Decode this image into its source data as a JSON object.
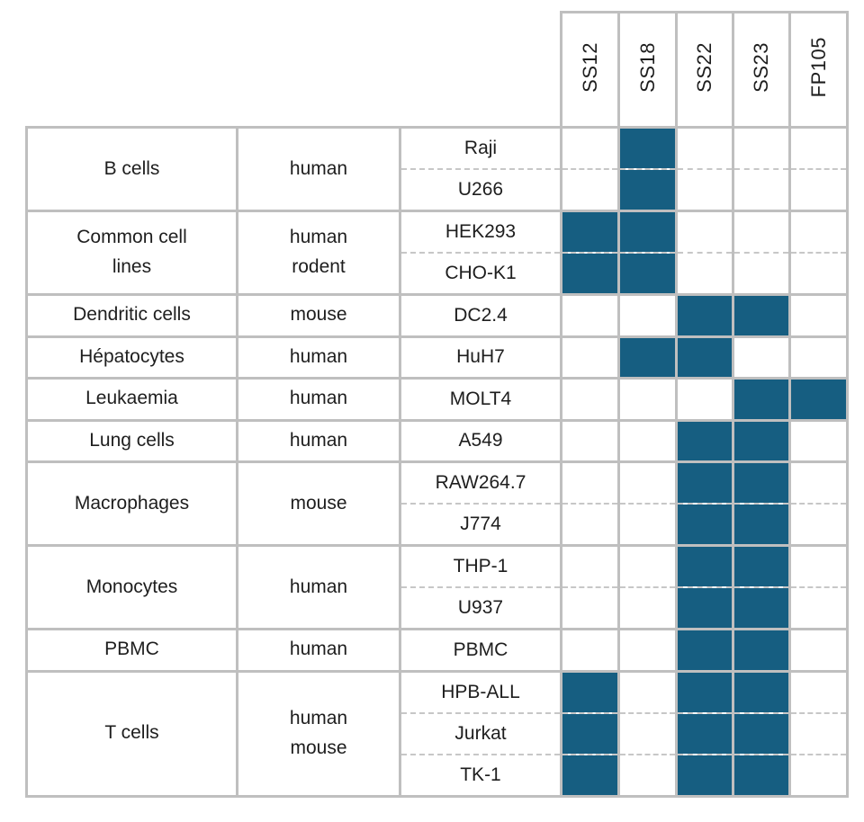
{
  "colors": {
    "fill": "#165E81",
    "border": "#BFBFBF",
    "dash": "#C7C7C7",
    "text": "#1E1E1E"
  },
  "compounds": [
    "SS12",
    "SS18",
    "SS22",
    "SS23",
    "FP105"
  ],
  "groups": [
    {
      "cell_type": "B cells",
      "species": "human",
      "rows": [
        {
          "cell_line": "Raji",
          "marks": [
            "SS18"
          ]
        },
        {
          "cell_line": "U266",
          "marks": [
            "SS18"
          ]
        }
      ]
    },
    {
      "cell_type": "Common cell\nlines",
      "species": "human\nrodent",
      "rows": [
        {
          "cell_line": "HEK293",
          "marks": [
            "SS12",
            "SS18"
          ]
        },
        {
          "cell_line": "CHO-K1",
          "marks": [
            "SS12",
            "SS18"
          ]
        }
      ]
    },
    {
      "cell_type": "Dendritic cells",
      "species": "mouse",
      "rows": [
        {
          "cell_line": "DC2.4",
          "marks": [
            "SS22",
            "SS23"
          ]
        }
      ]
    },
    {
      "cell_type": "Hépatocytes",
      "species": "human",
      "rows": [
        {
          "cell_line": "HuH7",
          "marks": [
            "SS18",
            "SS22"
          ]
        }
      ]
    },
    {
      "cell_type": "Leukaemia",
      "species": "human",
      "rows": [
        {
          "cell_line": "MOLT4",
          "marks": [
            "SS23",
            "FP105"
          ]
        }
      ]
    },
    {
      "cell_type": "Lung cells",
      "species": "human",
      "rows": [
        {
          "cell_line": "A549",
          "marks": [
            "SS22",
            "SS23"
          ]
        }
      ]
    },
    {
      "cell_type": "Macrophages",
      "species": "mouse",
      "rows": [
        {
          "cell_line": "RAW264.7",
          "marks": [
            "SS22",
            "SS23"
          ]
        },
        {
          "cell_line": "J774",
          "marks": [
            "SS22",
            "SS23"
          ]
        }
      ]
    },
    {
      "cell_type": "Monocytes",
      "species": "human",
      "rows": [
        {
          "cell_line": "THP-1",
          "marks": [
            "SS22",
            "SS23"
          ]
        },
        {
          "cell_line": "U937",
          "marks": [
            "SS22",
            "SS23"
          ]
        }
      ]
    },
    {
      "cell_type": "PBMC",
      "species": "human",
      "rows": [
        {
          "cell_line": "PBMC",
          "marks": [
            "SS22",
            "SS23"
          ]
        }
      ]
    },
    {
      "cell_type": "T cells",
      "species": "human\nmouse",
      "rows": [
        {
          "cell_line": "HPB-ALL",
          "marks": [
            "SS12",
            "SS22",
            "SS23"
          ]
        },
        {
          "cell_line": "Jurkat",
          "marks": [
            "SS12",
            "SS22",
            "SS23"
          ]
        },
        {
          "cell_line": "TK-1",
          "marks": [
            "SS12",
            "SS22",
            "SS23"
          ]
        }
      ]
    }
  ],
  "chart_data": {
    "type": "heatmap",
    "title": "",
    "x_labels": [
      "SS12",
      "SS18",
      "SS22",
      "SS23",
      "FP105"
    ],
    "y_labels": [
      "Raji",
      "U266",
      "HEK293",
      "CHO-K1",
      "DC2.4",
      "HuH7",
      "MOLT4",
      "A549",
      "RAW264.7",
      "J774",
      "THP-1",
      "U937",
      "PBMC",
      "HPB-ALL",
      "Jurkat",
      "TK-1"
    ],
    "row_groups": [
      {
        "label": "B cells",
        "species": "human",
        "rows": [
          "Raji",
          "U266"
        ]
      },
      {
        "label": "Common cell lines",
        "species": "human rodent",
        "rows": [
          "HEK293",
          "CHO-K1"
        ]
      },
      {
        "label": "Dendritic cells",
        "species": "mouse",
        "rows": [
          "DC2.4"
        ]
      },
      {
        "label": "Hépatocytes",
        "species": "human",
        "rows": [
          "HuH7"
        ]
      },
      {
        "label": "Leukaemia",
        "species": "human",
        "rows": [
          "MOLT4"
        ]
      },
      {
        "label": "Lung cells",
        "species": "human",
        "rows": [
          "A549"
        ]
      },
      {
        "label": "Macrophages",
        "species": "mouse",
        "rows": [
          "RAW264.7",
          "J774"
        ]
      },
      {
        "label": "Monocytes",
        "species": "human",
        "rows": [
          "THP-1",
          "U937"
        ]
      },
      {
        "label": "PBMC",
        "species": "human",
        "rows": [
          "PBMC"
        ]
      },
      {
        "label": "T cells",
        "species": "human mouse",
        "rows": [
          "HPB-ALL",
          "Jurkat",
          "TK-1"
        ]
      }
    ],
    "values": [
      [
        0,
        1,
        0,
        0,
        0
      ],
      [
        0,
        1,
        0,
        0,
        0
      ],
      [
        1,
        1,
        0,
        0,
        0
      ],
      [
        1,
        1,
        0,
        0,
        0
      ],
      [
        0,
        0,
        1,
        1,
        0
      ],
      [
        0,
        1,
        1,
        0,
        0
      ],
      [
        0,
        0,
        0,
        1,
        1
      ],
      [
        0,
        0,
        1,
        1,
        0
      ],
      [
        0,
        0,
        1,
        1,
        0
      ],
      [
        0,
        0,
        1,
        1,
        0
      ],
      [
        0,
        0,
        1,
        1,
        0
      ],
      [
        0,
        0,
        1,
        1,
        0
      ],
      [
        0,
        0,
        1,
        1,
        0
      ],
      [
        1,
        0,
        1,
        1,
        0
      ],
      [
        1,
        0,
        1,
        1,
        0
      ],
      [
        1,
        0,
        1,
        1,
        0
      ]
    ],
    "fill_color": "#165E81",
    "legend_position": "none",
    "grid": true
  }
}
